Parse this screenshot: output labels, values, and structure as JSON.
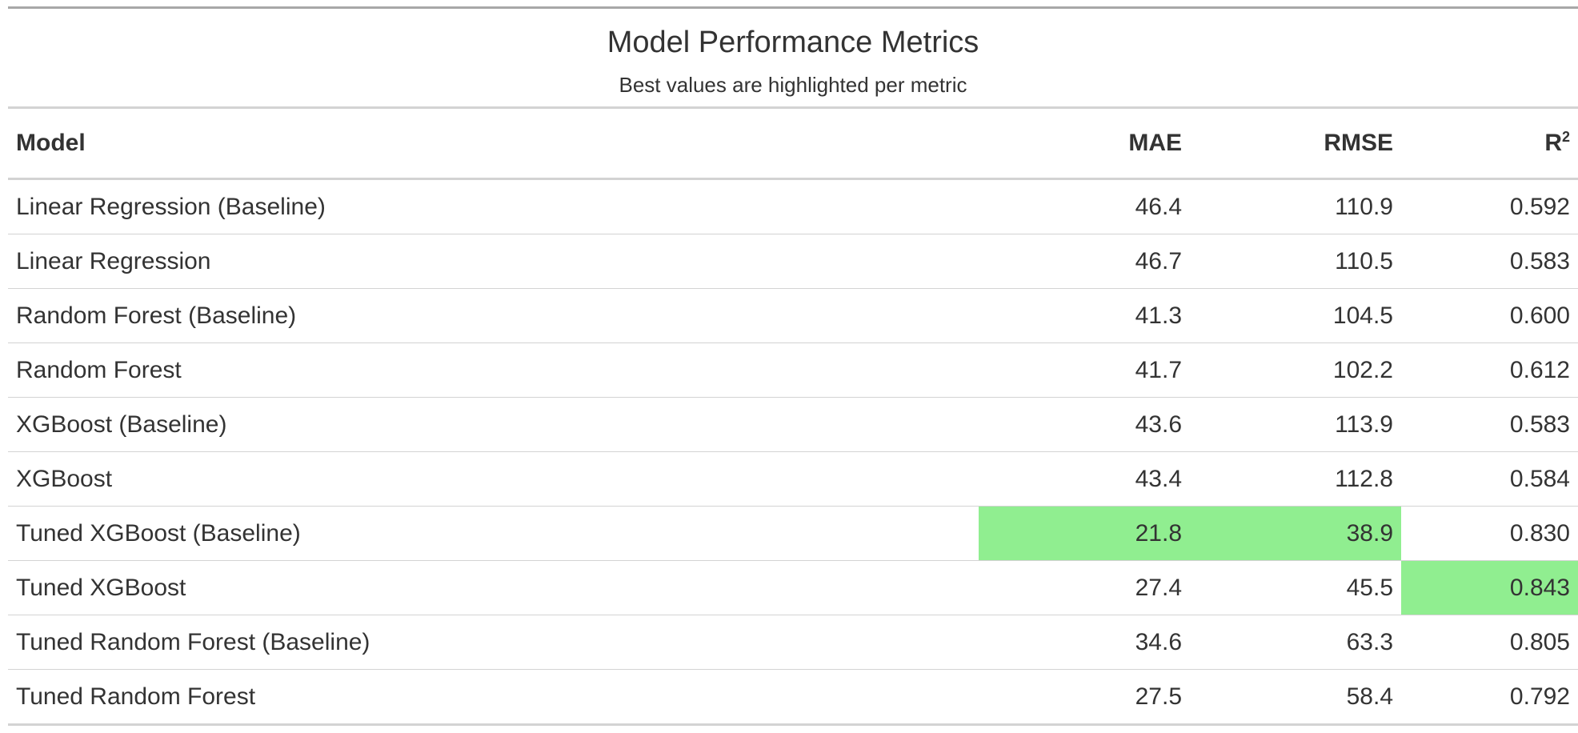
{
  "table": {
    "title": "Model Performance Metrics",
    "subtitle": "Best values are highlighted per metric",
    "headers": {
      "model": "Model",
      "mae": "MAE",
      "rmse": "RMSE",
      "r2_base": "R",
      "r2_sup": "2"
    },
    "rows": [
      {
        "model": "Linear Regression (Baseline)",
        "mae": "46.4",
        "rmse": "110.9",
        "r2": "0.592",
        "best": []
      },
      {
        "model": "Linear Regression",
        "mae": "46.7",
        "rmse": "110.5",
        "r2": "0.583",
        "best": []
      },
      {
        "model": "Random Forest (Baseline)",
        "mae": "41.3",
        "rmse": "104.5",
        "r2": "0.600",
        "best": []
      },
      {
        "model": "Random Forest",
        "mae": "41.7",
        "rmse": "102.2",
        "r2": "0.612",
        "best": []
      },
      {
        "model": "XGBoost (Baseline)",
        "mae": "43.6",
        "rmse": "113.9",
        "r2": "0.583",
        "best": []
      },
      {
        "model": "XGBoost",
        "mae": "43.4",
        "rmse": "112.8",
        "r2": "0.584",
        "best": []
      },
      {
        "model": "Tuned XGBoost (Baseline)",
        "mae": "21.8",
        "rmse": "38.9",
        "r2": "0.830",
        "best": [
          "mae",
          "rmse"
        ]
      },
      {
        "model": "Tuned XGBoost",
        "mae": "27.4",
        "rmse": "45.5",
        "r2": "0.843",
        "best": [
          "r2"
        ]
      },
      {
        "model": "Tuned Random Forest (Baseline)",
        "mae": "34.6",
        "rmse": "63.3",
        "r2": "0.805",
        "best": []
      },
      {
        "model": "Tuned Random Forest",
        "mae": "27.5",
        "rmse": "58.4",
        "r2": "0.792",
        "best": []
      }
    ],
    "highlight_color": "#90ee90"
  }
}
